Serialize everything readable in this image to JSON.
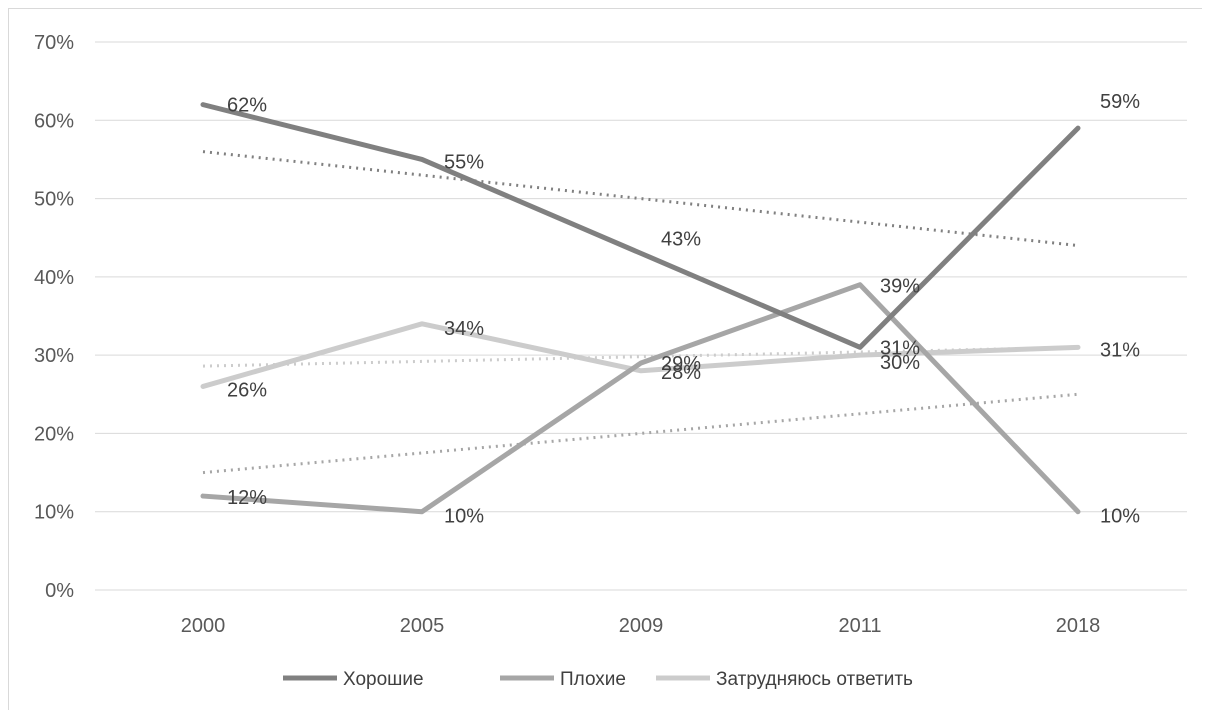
{
  "chart_data": {
    "type": "line",
    "categories": [
      "2000",
      "2005",
      "2009",
      "2011",
      "2018"
    ],
    "yticks": [
      "0%",
      "10%",
      "20%",
      "30%",
      "40%",
      "50%",
      "60%",
      "70%"
    ],
    "ylim": [
      0,
      70
    ],
    "grid": true,
    "legend_position": "bottom",
    "series": [
      {
        "name": "Хорошие",
        "values": [
          62,
          55,
          43,
          31,
          59
        ],
        "labels": [
          "62%",
          "55%",
          "43%",
          "31%",
          "59%"
        ],
        "color": "#808080",
        "trendline": true
      },
      {
        "name": "Плохие",
        "values": [
          12,
          10,
          29,
          39,
          10
        ],
        "labels": [
          "12%",
          "10%",
          "29%",
          "39%",
          "10%"
        ],
        "color": "#a6a6a6",
        "trendline": true
      },
      {
        "name": "Затрудняюсь ответить",
        "values": [
          26,
          34,
          28,
          30,
          31
        ],
        "labels": [
          "26%",
          "34%",
          "28%",
          "30%",
          "31%"
        ],
        "color": "#cccccc",
        "trendline": true
      }
    ]
  }
}
